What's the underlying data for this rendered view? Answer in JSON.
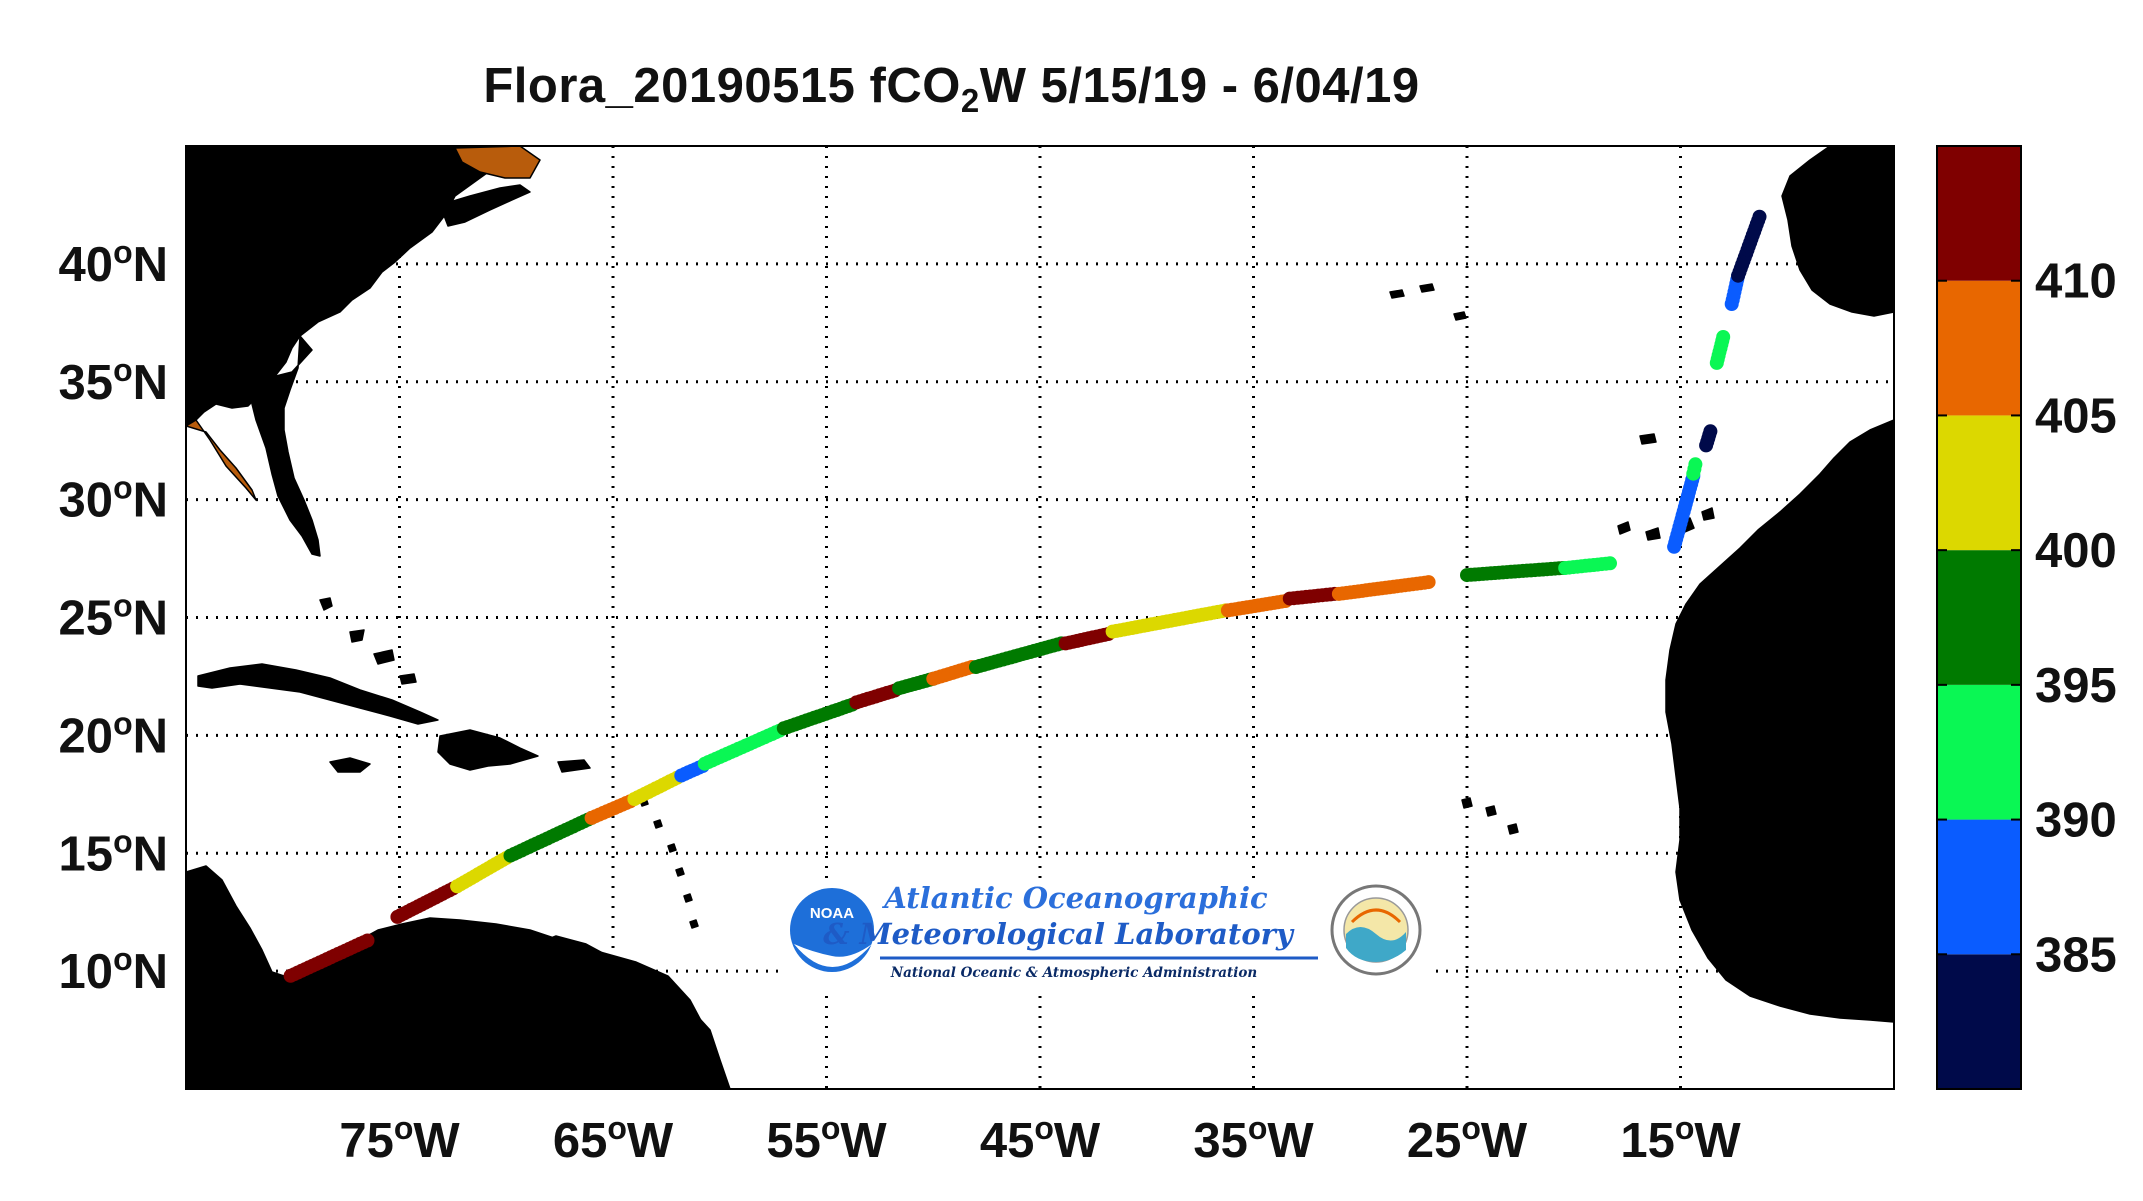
{
  "title": {
    "prefix": "Flora_20190515 fCO",
    "subscript": "2",
    "suffix": "W 5/15/19 - 6/04/19"
  },
  "map": {
    "lon_range": [
      -85,
      -5
    ],
    "lat_range": [
      5,
      45
    ],
    "grid": true,
    "land_color": "#B85C0C",
    "ocean_color": "#ffffff",
    "x_ticks": [
      {
        "value": -75,
        "num": "75",
        "deg": "o",
        "hemi": "W"
      },
      {
        "value": -65,
        "num": "65",
        "deg": "o",
        "hemi": "W"
      },
      {
        "value": -55,
        "num": "55",
        "deg": "o",
        "hemi": "W"
      },
      {
        "value": -45,
        "num": "45",
        "deg": "o",
        "hemi": "W"
      },
      {
        "value": -35,
        "num": "35",
        "deg": "o",
        "hemi": "W"
      },
      {
        "value": -25,
        "num": "25",
        "deg": "o",
        "hemi": "W"
      },
      {
        "value": -15,
        "num": "15",
        "deg": "o",
        "hemi": "W"
      }
    ],
    "y_ticks": [
      {
        "value": 40,
        "num": "40",
        "deg": "o",
        "hemi": "N"
      },
      {
        "value": 35,
        "num": "35",
        "deg": "o",
        "hemi": "N"
      },
      {
        "value": 30,
        "num": "30",
        "deg": "o",
        "hemi": "N"
      },
      {
        "value": 25,
        "num": "25",
        "deg": "o",
        "hemi": "N"
      },
      {
        "value": 20,
        "num": "20",
        "deg": "o",
        "hemi": "N"
      },
      {
        "value": 15,
        "num": "15",
        "deg": "o",
        "hemi": "N"
      },
      {
        "value": 10,
        "num": "10",
        "deg": "o",
        "hemi": "N"
      }
    ]
  },
  "colorbar": {
    "bins": [
      {
        "min": 380,
        "max": 385,
        "color": "#000A4A"
      },
      {
        "min": 385,
        "max": 390,
        "color": "#0A5CFF"
      },
      {
        "min": 390,
        "max": 395,
        "color": "#0AF754"
      },
      {
        "min": 395,
        "max": 400,
        "color": "#007A00"
      },
      {
        "min": 400,
        "max": 405,
        "color": "#DCD800"
      },
      {
        "min": 405,
        "max": 410,
        "color": "#E86700"
      },
      {
        "min": 410,
        "max": 415,
        "color": "#7F0000"
      }
    ],
    "ticks": [
      "385",
      "390",
      "395",
      "400",
      "405",
      "410"
    ]
  },
  "chart_data": {
    "type": "scatter",
    "title": "Flora_20190515 fCO2W 5/15/19 - 6/04/19",
    "xlabel": "",
    "ylabel": "",
    "xlim": [
      -85,
      -5
    ],
    "ylim": [
      5,
      45
    ],
    "color_variable": "fCO2W",
    "track_segments": [
      {
        "from": [
          -80.1,
          9.8
        ],
        "to": [
          -76.5,
          11.3
        ],
        "value": 412
      },
      {
        "from": [
          -75.1,
          12.3
        ],
        "to": [
          -72.5,
          13.5
        ],
        "value": 412
      },
      {
        "from": [
          -72.3,
          13.6
        ],
        "to": [
          -70.0,
          14.8
        ],
        "value": 402
      },
      {
        "from": [
          -69.8,
          14.9
        ],
        "to": [
          -66.0,
          16.5
        ],
        "value": 398
      },
      {
        "from": [
          -66.0,
          16.5
        ],
        "to": [
          -64.2,
          17.2
        ],
        "value": 407
      },
      {
        "from": [
          -64.0,
          17.3
        ],
        "to": [
          -62.0,
          18.2
        ],
        "value": 402
      },
      {
        "from": [
          -61.8,
          18.3
        ],
        "to": [
          -60.8,
          18.7
        ],
        "value": 388
      },
      {
        "from": [
          -60.7,
          18.8
        ],
        "to": [
          -57.2,
          20.2
        ],
        "value": 392
      },
      {
        "from": [
          -57.0,
          20.3
        ],
        "to": [
          -53.8,
          21.3
        ],
        "value": 398
      },
      {
        "from": [
          -53.6,
          21.4
        ],
        "to": [
          -51.8,
          21.9
        ],
        "value": 412
      },
      {
        "from": [
          -51.6,
          22.0
        ],
        "to": [
          -50.0,
          22.4
        ],
        "value": 398
      },
      {
        "from": [
          -50.0,
          22.4
        ],
        "to": [
          -48.2,
          22.9
        ],
        "value": 407
      },
      {
        "from": [
          -48.0,
          22.9
        ],
        "to": [
          -44.0,
          23.9
        ],
        "value": 398
      },
      {
        "from": [
          -43.8,
          23.9
        ],
        "to": [
          -41.8,
          24.3
        ],
        "value": 412
      },
      {
        "from": [
          -41.6,
          24.4
        ],
        "to": [
          -36.3,
          25.3
        ],
        "value": 400
      },
      {
        "from": [
          -36.2,
          25.3
        ],
        "to": [
          -33.5,
          25.7
        ],
        "value": 407
      },
      {
        "from": [
          -33.3,
          25.8
        ],
        "to": [
          -31.2,
          26.0
        ],
        "value": 412
      },
      {
        "from": [
          -31.0,
          26.0
        ],
        "to": [
          -26.8,
          26.5
        ],
        "value": 406
      },
      {
        "from": [
          -25.0,
          26.8
        ],
        "to": [
          -20.5,
          27.1
        ],
        "value": 397
      },
      {
        "from": [
          -20.4,
          27.1
        ],
        "to": [
          -18.3,
          27.3
        ],
        "value": 394
      },
      {
        "from": [
          -15.3,
          28.0
        ],
        "to": [
          -14.4,
          31.0
        ],
        "value": 388
      },
      {
        "from": [
          -14.4,
          31.1
        ],
        "to": [
          -14.3,
          31.5
        ],
        "value": 392
      },
      {
        "from": [
          -13.8,
          32.3
        ],
        "to": [
          -13.6,
          32.9
        ],
        "value": 382
      },
      {
        "from": [
          -13.3,
          35.8
        ],
        "to": [
          -13.0,
          36.9
        ],
        "value": 393
      },
      {
        "from": [
          -12.6,
          38.3
        ],
        "to": [
          -12.3,
          39.5
        ],
        "value": 387
      },
      {
        "from": [
          -12.3,
          39.5
        ],
        "to": [
          -11.3,
          42.0
        ],
        "value": 382
      }
    ]
  },
  "logo": {
    "badge_text": "NOAA",
    "line1": "Atlantic Oceanographic",
    "line2": "& Meteorological Laboratory",
    "line3": "National Oceanic & Atmospheric Administration",
    "line2_color": "#1E5BC6",
    "line1_color": "#2B6FDB",
    "line3_color": "#0A2A66"
  }
}
